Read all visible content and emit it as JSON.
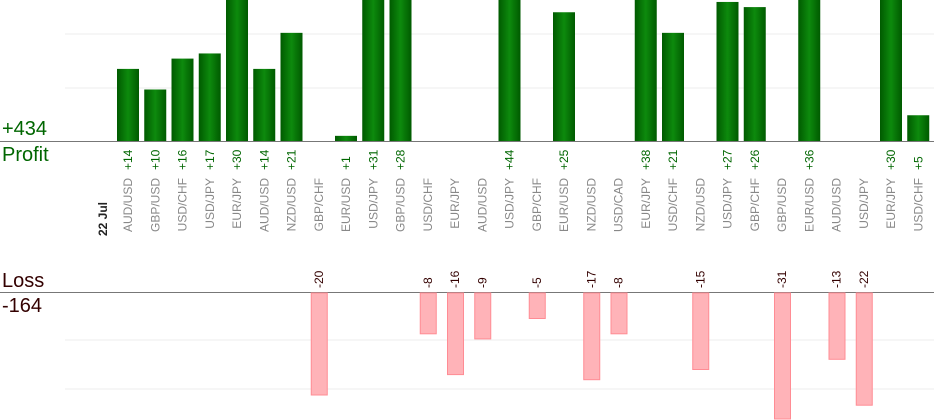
{
  "labels": {
    "profit_total": "+434",
    "profit_word": "Profit",
    "loss_word": "Loss",
    "loss_total": "-164"
  },
  "colors": {
    "profit_bar_dark": "#005a00",
    "profit_bar_light": "#0d8a0d",
    "profit_text": "#006600",
    "loss_bar_fill": "#ffb3b8",
    "loss_bar_stroke": "#ff8c94",
    "loss_text": "#330000",
    "axis_line": "#777777",
    "grid_line": "#eeeeee",
    "category_text": "#888888",
    "date_text": "#222222"
  },
  "chart_data": {
    "type": "bar",
    "date_label": "22 Jul",
    "categories": [
      "AUD/USD",
      "GBP/USD",
      "USD/CHF",
      "USD/JPY",
      "EUR/JPY",
      "AUD/USD",
      "NZD/USD",
      "GBP/CHF",
      "EUR/USD",
      "USD/JPY",
      "GBP/USD",
      "USD/CHF",
      "EUR/JPY",
      "AUD/USD",
      "USD/JPY",
      "GBP/CHF",
      "EUR/USD",
      "NZD/USD",
      "USD/CAD",
      "EUR/JPY",
      "USD/CHF",
      "NZD/USD",
      "USD/JPY",
      "GBP/CHF",
      "GBP/USD",
      "EUR/USD",
      "AUD/USD",
      "USD/JPY",
      "EUR/JPY",
      "USD/CHF"
    ],
    "series": [
      {
        "name": "Profit",
        "values": [
          14,
          10,
          16,
          17,
          30,
          14,
          21,
          null,
          1,
          31,
          28,
          null,
          null,
          null,
          44,
          null,
          25,
          null,
          null,
          38,
          21,
          null,
          27,
          26,
          null,
          36,
          null,
          null,
          30,
          5
        ],
        "labels": [
          "+14",
          "+10",
          "+16",
          "+17",
          "+30",
          "+14",
          "+21",
          "",
          "+1",
          "+31",
          "+28",
          "",
          "",
          "",
          "+44",
          "",
          "+25",
          "",
          "",
          "+38",
          "+21",
          "",
          "+27",
          "+26",
          "",
          "+36",
          "",
          "",
          "+30",
          "+5"
        ]
      },
      {
        "name": "Loss",
        "values": [
          null,
          null,
          null,
          null,
          null,
          null,
          null,
          -20,
          null,
          null,
          null,
          -8,
          -16,
          -9,
          null,
          -5,
          null,
          -17,
          -8,
          null,
          null,
          -15,
          null,
          null,
          -31,
          null,
          -13,
          -22,
          null,
          null
        ],
        "labels": [
          "",
          "",
          "",
          "",
          "",
          "",
          "",
          "-20",
          "",
          "",
          "",
          "-8",
          "-16",
          "-9",
          "",
          "-5",
          "",
          "-17",
          "-8",
          "",
          "",
          "-15",
          "",
          "",
          "-31",
          "",
          "-13",
          "-22",
          "",
          ""
        ]
      }
    ],
    "profit_axis_max": 27.5,
    "loss_axis_min": -22.5,
    "grid": true
  }
}
